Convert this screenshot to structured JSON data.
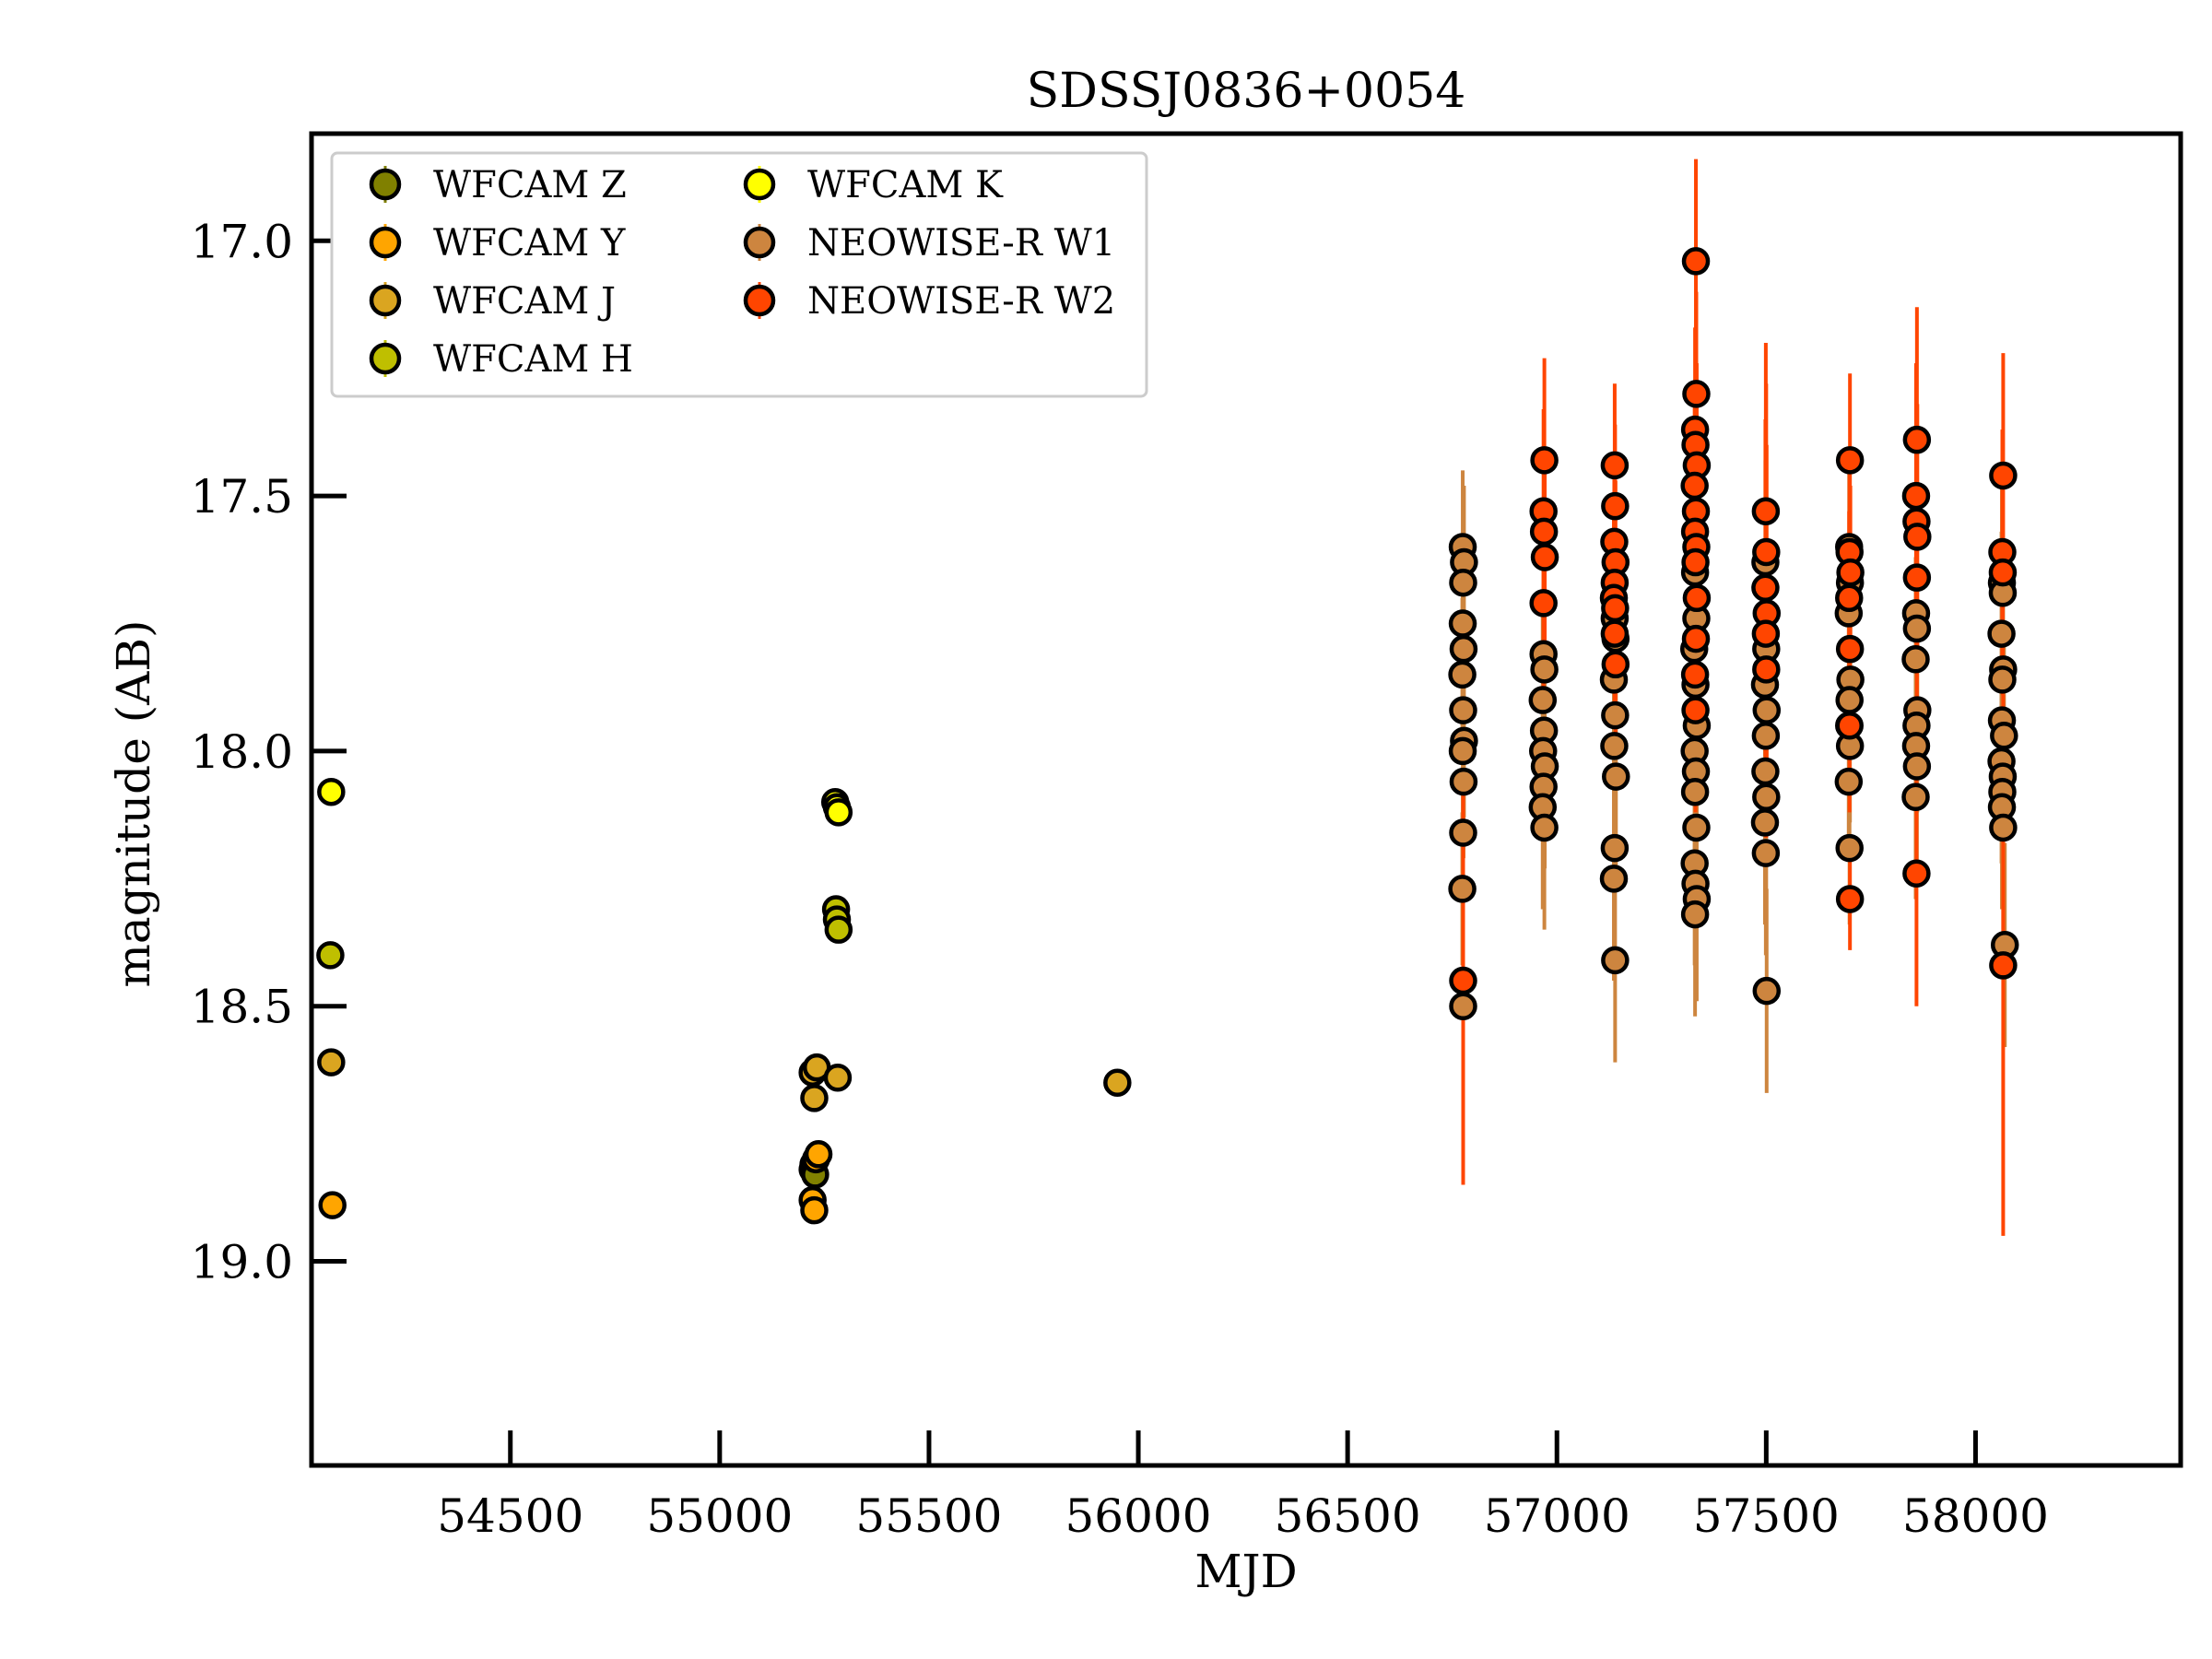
{
  "chart_data": {
    "type": "scatter",
    "title": "SDSSJ0836+0054",
    "xlabel": "MJD",
    "ylabel": "magnitude (AB)",
    "xlim": [
      54025,
      58490
    ],
    "ylim": [
      19.4,
      16.79
    ],
    "y_inverted": true,
    "grid": false,
    "legend_position": "top-left",
    "xticks": [
      54500,
      55000,
      55500,
      56000,
      56500,
      57000,
      57500,
      58000
    ],
    "yticks": [
      17.0,
      17.5,
      18.0,
      18.5,
      19.0
    ],
    "ytick_labels": [
      "17.0",
      "17.5",
      "18.0",
      "18.5",
      "19.0"
    ],
    "series": [
      {
        "name": "WFCAM Z",
        "color": "#808000",
        "points": [
          {
            "x": 55222,
            "y": 18.82,
            "err": 0.02
          },
          {
            "x": 55224,
            "y": 18.81,
            "err": 0.015
          },
          {
            "x": 55228,
            "y": 18.83,
            "err": 0.015
          }
        ]
      },
      {
        "name": "WFCAM Y",
        "color": "#ffa500",
        "points": [
          {
            "x": 54075,
            "y": 18.89,
            "err": 0.02
          },
          {
            "x": 55222,
            "y": 18.88,
            "err": 0.03
          },
          {
            "x": 55230,
            "y": 18.8,
            "err": 0.02
          },
          {
            "x": 55236,
            "y": 18.79,
            "err": 0.02
          },
          {
            "x": 55226,
            "y": 18.9,
            "err": 0.02
          }
        ]
      },
      {
        "name": "WFCAM J",
        "color": "#daa520",
        "points": [
          {
            "x": 54072,
            "y": 18.61,
            "err": 0.02
          },
          {
            "x": 55222,
            "y": 18.63,
            "err": 0.02
          },
          {
            "x": 55226,
            "y": 18.68,
            "err": 0.02
          },
          {
            "x": 55232,
            "y": 18.62,
            "err": 0.015
          },
          {
            "x": 55282,
            "y": 18.64,
            "err": 0.015
          },
          {
            "x": 55950,
            "y": 18.65,
            "err": 0.02
          }
        ]
      },
      {
        "name": "WFCAM H",
        "color": "#bfbf00",
        "points": [
          {
            "x": 54070,
            "y": 18.4,
            "err": 0.02
          },
          {
            "x": 55278,
            "y": 18.31,
            "err": 0.015
          },
          {
            "x": 55280,
            "y": 18.33,
            "err": 0.015
          },
          {
            "x": 55284,
            "y": 18.35,
            "err": 0.015
          }
        ]
      },
      {
        "name": "WFCAM K",
        "color": "#ffff00",
        "points": [
          {
            "x": 54072,
            "y": 18.08,
            "err": 0.02
          },
          {
            "x": 55276,
            "y": 18.1,
            "err": 0.015
          },
          {
            "x": 55280,
            "y": 18.11,
            "err": 0.015
          },
          {
            "x": 55284,
            "y": 18.12,
            "err": 0.015
          }
        ]
      },
      {
        "name": "NEOWISE-R W1",
        "color": "#cd853f",
        "points": [
          {
            "x": 56775,
            "y": 17.6,
            "err": 0.15
          },
          {
            "x": 56778,
            "y": 17.63,
            "err": 0.15
          },
          {
            "x": 56776,
            "y": 17.67,
            "err": 0.15
          },
          {
            "x": 56775,
            "y": 17.75,
            "err": 0.15
          },
          {
            "x": 56777,
            "y": 17.8,
            "err": 0.15
          },
          {
            "x": 56774,
            "y": 17.85,
            "err": 0.15
          },
          {
            "x": 56776,
            "y": 17.92,
            "err": 0.15
          },
          {
            "x": 56778,
            "y": 17.98,
            "err": 0.15
          },
          {
            "x": 56775,
            "y": 18.0,
            "err": 0.15
          },
          {
            "x": 56777,
            "y": 18.06,
            "err": 0.15
          },
          {
            "x": 56776,
            "y": 18.16,
            "err": 0.15
          },
          {
            "x": 56774,
            "y": 18.27,
            "err": 0.15
          },
          {
            "x": 56776,
            "y": 18.5,
            "err": 0.2
          },
          {
            "x": 56968,
            "y": 17.81,
            "err": 0.2
          },
          {
            "x": 56970,
            "y": 17.84,
            "err": 0.2
          },
          {
            "x": 56966,
            "y": 17.9,
            "err": 0.2
          },
          {
            "x": 56969,
            "y": 17.96,
            "err": 0.2
          },
          {
            "x": 56967,
            "y": 18.0,
            "err": 0.2
          },
          {
            "x": 56971,
            "y": 18.03,
            "err": 0.2
          },
          {
            "x": 56968,
            "y": 18.07,
            "err": 0.2
          },
          {
            "x": 56966,
            "y": 18.11,
            "err": 0.2
          },
          {
            "x": 56970,
            "y": 18.15,
            "err": 0.2
          },
          {
            "x": 57138,
            "y": 17.74,
            "err": 0.2
          },
          {
            "x": 57140,
            "y": 17.78,
            "err": 0.2
          },
          {
            "x": 57136,
            "y": 17.86,
            "err": 0.2
          },
          {
            "x": 57139,
            "y": 17.93,
            "err": 0.2
          },
          {
            "x": 57137,
            "y": 17.99,
            "err": 0.2
          },
          {
            "x": 57141,
            "y": 18.05,
            "err": 0.2
          },
          {
            "x": 57138,
            "y": 18.19,
            "err": 0.2
          },
          {
            "x": 57136,
            "y": 18.25,
            "err": 0.2
          },
          {
            "x": 57139,
            "y": 18.41,
            "err": 0.2
          },
          {
            "x": 57330,
            "y": 17.65,
            "err": 0.2
          },
          {
            "x": 57333,
            "y": 17.74,
            "err": 0.2
          },
          {
            "x": 57328,
            "y": 17.8,
            "err": 0.2
          },
          {
            "x": 57331,
            "y": 17.87,
            "err": 0.2
          },
          {
            "x": 57334,
            "y": 17.95,
            "err": 0.2
          },
          {
            "x": 57329,
            "y": 18.0,
            "err": 0.2
          },
          {
            "x": 57332,
            "y": 18.04,
            "err": 0.2
          },
          {
            "x": 57330,
            "y": 18.08,
            "err": 0.2
          },
          {
            "x": 57333,
            "y": 18.15,
            "err": 0.2
          },
          {
            "x": 57329,
            "y": 18.22,
            "err": 0.2
          },
          {
            "x": 57331,
            "y": 18.26,
            "err": 0.2
          },
          {
            "x": 57334,
            "y": 18.29,
            "err": 0.2
          },
          {
            "x": 57330,
            "y": 18.32,
            "err": 0.2
          },
          {
            "x": 57498,
            "y": 17.63,
            "err": 0.2
          },
          {
            "x": 57500,
            "y": 17.8,
            "err": 0.2
          },
          {
            "x": 57497,
            "y": 17.87,
            "err": 0.2
          },
          {
            "x": 57501,
            "y": 17.92,
            "err": 0.2
          },
          {
            "x": 57499,
            "y": 17.97,
            "err": 0.2
          },
          {
            "x": 57498,
            "y": 18.04,
            "err": 0.2
          },
          {
            "x": 57500,
            "y": 18.09,
            "err": 0.2
          },
          {
            "x": 57497,
            "y": 18.14,
            "err": 0.2
          },
          {
            "x": 57499,
            "y": 18.2,
            "err": 0.2
          },
          {
            "x": 57501,
            "y": 18.47,
            "err": 0.2
          },
          {
            "x": 57698,
            "y": 17.6,
            "err": 0.15
          },
          {
            "x": 57700,
            "y": 17.67,
            "err": 0.15
          },
          {
            "x": 57697,
            "y": 17.73,
            "err": 0.15
          },
          {
            "x": 57701,
            "y": 17.86,
            "err": 0.15
          },
          {
            "x": 57699,
            "y": 17.9,
            "err": 0.15
          },
          {
            "x": 57698,
            "y": 17.95,
            "err": 0.15
          },
          {
            "x": 57700,
            "y": 17.99,
            "err": 0.15
          },
          {
            "x": 57697,
            "y": 18.06,
            "err": 0.15
          },
          {
            "x": 57699,
            "y": 18.19,
            "err": 0.15
          },
          {
            "x": 57858,
            "y": 17.73,
            "err": 0.2
          },
          {
            "x": 57860,
            "y": 17.76,
            "err": 0.2
          },
          {
            "x": 57857,
            "y": 17.82,
            "err": 0.2
          },
          {
            "x": 57861,
            "y": 17.92,
            "err": 0.2
          },
          {
            "x": 57859,
            "y": 17.95,
            "err": 0.2
          },
          {
            "x": 57858,
            "y": 17.99,
            "err": 0.2
          },
          {
            "x": 57860,
            "y": 18.03,
            "err": 0.2
          },
          {
            "x": 57857,
            "y": 18.09,
            "err": 0.2
          },
          {
            "x": 58063,
            "y": 17.67,
            "err": 0.2
          },
          {
            "x": 58065,
            "y": 17.69,
            "err": 0.2
          },
          {
            "x": 58062,
            "y": 17.77,
            "err": 0.2
          },
          {
            "x": 58066,
            "y": 17.84,
            "err": 0.2
          },
          {
            "x": 58064,
            "y": 17.86,
            "err": 0.2
          },
          {
            "x": 58063,
            "y": 17.94,
            "err": 0.2
          },
          {
            "x": 58068,
            "y": 17.97,
            "err": 0.2
          },
          {
            "x": 58062,
            "y": 18.02,
            "err": 0.2
          },
          {
            "x": 58065,
            "y": 18.05,
            "err": 0.2
          },
          {
            "x": 58064,
            "y": 18.08,
            "err": 0.2
          },
          {
            "x": 58063,
            "y": 18.11,
            "err": 0.2
          },
          {
            "x": 58066,
            "y": 18.15,
            "err": 0.2
          },
          {
            "x": 58070,
            "y": 18.38,
            "err": 0.2
          }
        ]
      },
      {
        "name": "NEOWISE-R W2",
        "color": "#ff4500",
        "points": [
          {
            "x": 56776,
            "y": 18.45,
            "err": 0.4
          },
          {
            "x": 56970,
            "y": 17.43,
            "err": 0.2
          },
          {
            "x": 56968,
            "y": 17.53,
            "err": 0.2
          },
          {
            "x": 56969,
            "y": 17.57,
            "err": 0.2
          },
          {
            "x": 56971,
            "y": 17.62,
            "err": 0.2
          },
          {
            "x": 56968,
            "y": 17.71,
            "err": 0.2
          },
          {
            "x": 57138,
            "y": 17.44,
            "err": 0.16
          },
          {
            "x": 57139,
            "y": 17.52,
            "err": 0.16
          },
          {
            "x": 57137,
            "y": 17.59,
            "err": 0.16
          },
          {
            "x": 57140,
            "y": 17.63,
            "err": 0.16
          },
          {
            "x": 57138,
            "y": 17.67,
            "err": 0.16
          },
          {
            "x": 57136,
            "y": 17.7,
            "err": 0.16
          },
          {
            "x": 57139,
            "y": 17.72,
            "err": 0.16
          },
          {
            "x": 57138,
            "y": 17.77,
            "err": 0.16
          },
          {
            "x": 57140,
            "y": 17.83,
            "err": 0.16
          },
          {
            "x": 57332,
            "y": 17.04,
            "err": 0.2
          },
          {
            "x": 57333,
            "y": 17.3,
            "err": 0.2
          },
          {
            "x": 57330,
            "y": 17.37,
            "err": 0.2
          },
          {
            "x": 57331,
            "y": 17.4,
            "err": 0.2
          },
          {
            "x": 57334,
            "y": 17.44,
            "err": 0.2
          },
          {
            "x": 57329,
            "y": 17.48,
            "err": 0.2
          },
          {
            "x": 57332,
            "y": 17.53,
            "err": 0.2
          },
          {
            "x": 57330,
            "y": 17.57,
            "err": 0.2
          },
          {
            "x": 57333,
            "y": 17.6,
            "err": 0.2
          },
          {
            "x": 57331,
            "y": 17.63,
            "err": 0.2
          },
          {
            "x": 57334,
            "y": 17.7,
            "err": 0.2
          },
          {
            "x": 57332,
            "y": 17.78,
            "err": 0.2
          },
          {
            "x": 57330,
            "y": 17.85,
            "err": 0.2
          },
          {
            "x": 57331,
            "y": 17.92,
            "err": 0.2
          },
          {
            "x": 57499,
            "y": 17.53,
            "err": 0.33
          },
          {
            "x": 57500,
            "y": 17.61,
            "err": 0.33
          },
          {
            "x": 57498,
            "y": 17.68,
            "err": 0.33
          },
          {
            "x": 57501,
            "y": 17.73,
            "err": 0.33
          },
          {
            "x": 57499,
            "y": 17.77,
            "err": 0.33
          },
          {
            "x": 57500,
            "y": 17.84,
            "err": 0.33
          },
          {
            "x": 57700,
            "y": 17.43,
            "err": 0.17
          },
          {
            "x": 57699,
            "y": 17.61,
            "err": 0.17
          },
          {
            "x": 57701,
            "y": 17.65,
            "err": 0.17
          },
          {
            "x": 57698,
            "y": 17.7,
            "err": 0.17
          },
          {
            "x": 57700,
            "y": 17.8,
            "err": 0.17
          },
          {
            "x": 57699,
            "y": 17.95,
            "err": 0.17
          },
          {
            "x": 57700,
            "y": 18.29,
            "err": 0.1
          },
          {
            "x": 57860,
            "y": 17.39,
            "err": 0.26
          },
          {
            "x": 57858,
            "y": 17.5,
            "err": 0.26
          },
          {
            "x": 57859,
            "y": 17.55,
            "err": 0.26
          },
          {
            "x": 57861,
            "y": 17.58,
            "err": 0.26
          },
          {
            "x": 57860,
            "y": 17.66,
            "err": 0.26
          },
          {
            "x": 57859,
            "y": 18.24,
            "err": 0.26
          },
          {
            "x": 58066,
            "y": 17.46,
            "err": 0.24
          },
          {
            "x": 58064,
            "y": 17.61,
            "err": 0.24
          },
          {
            "x": 58065,
            "y": 17.65,
            "err": 0.24
          },
          {
            "x": 58066,
            "y": 18.42,
            "err": 0.53
          }
        ]
      }
    ],
    "point_style": {
      "big_marker_series_all": true,
      "faint_points_note": ""
    }
  }
}
